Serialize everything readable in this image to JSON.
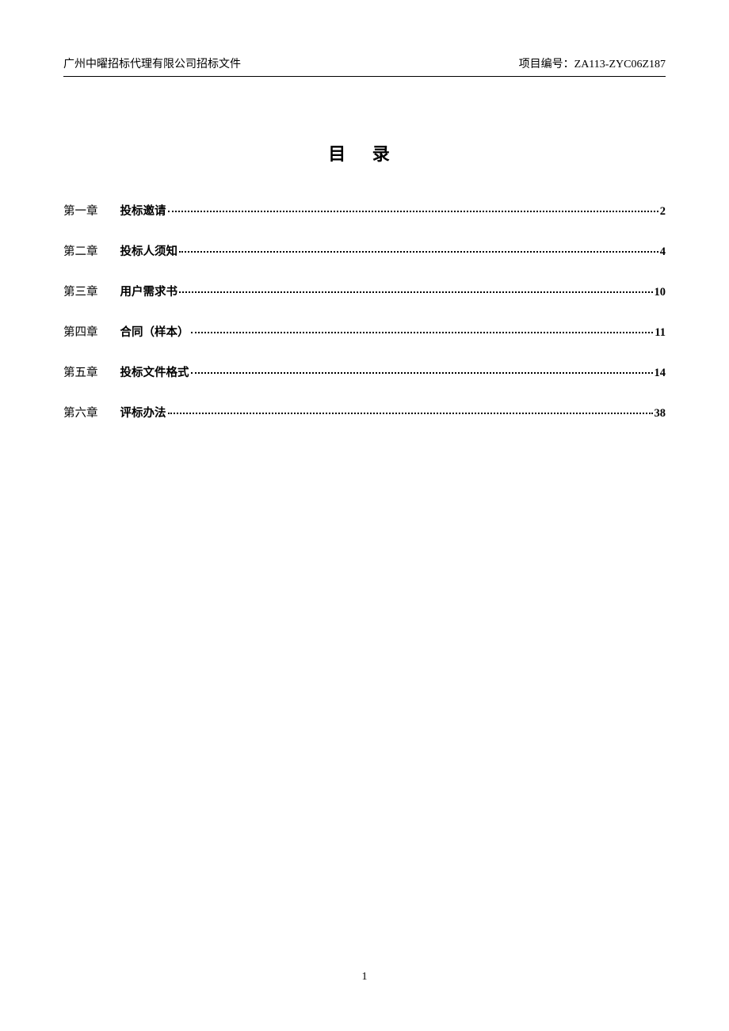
{
  "header": {
    "left": "广州中曜招标代理有限公司招标文件",
    "right_label": "项目编号：",
    "right_value": "ZA113-ZYC06Z187"
  },
  "toc": {
    "title": "目 录",
    "entries": [
      {
        "chapter": "第一章",
        "name": "投标邀请",
        "page": "2"
      },
      {
        "chapter": "第二章",
        "name": "投标人须知",
        "page": "4"
      },
      {
        "chapter": "第三章",
        "name": "用户需求书",
        "page": "10"
      },
      {
        "chapter": "第四章",
        "name": "合同（样本）",
        "page": "11"
      },
      {
        "chapter": "第五章",
        "name": "投标文件格式",
        "page": "14"
      },
      {
        "chapter": "第六章",
        "name": "评标办法",
        "page": "38"
      }
    ]
  },
  "footer": {
    "page_number": "1"
  }
}
